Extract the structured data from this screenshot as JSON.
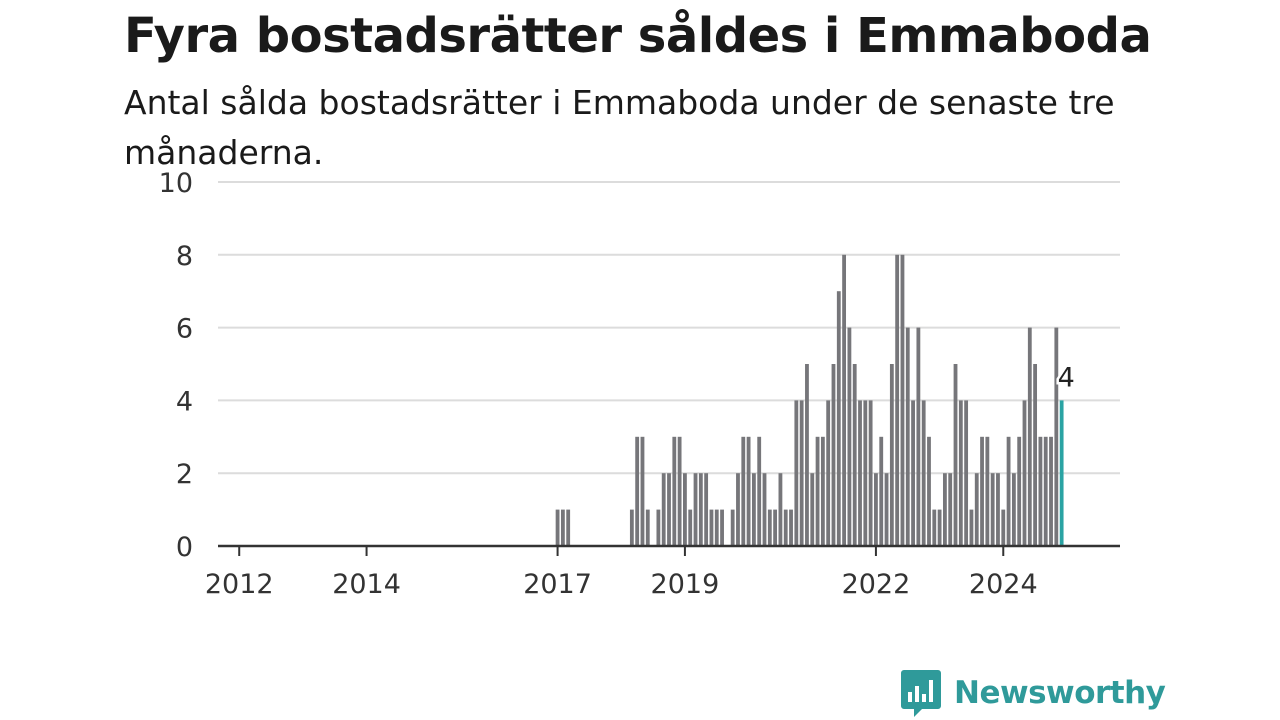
{
  "header": {
    "title": "Fyra bostadsrätter såldes i Emmaboda",
    "subtitle": "Antal sålda bostadsrätter i Emmaboda under de senaste tre månaderna."
  },
  "chart_data": {
    "type": "bar",
    "title": "Fyra bostadsrätter såldes i Emmaboda",
    "subtitle": "Antal sålda bostadsrätter i Emmaboda under de senaste tre månaderna.",
    "xlabel": "",
    "ylabel": "",
    "x_range": [
      "2011-09",
      "2025-11"
    ],
    "ylim": [
      0,
      10
    ],
    "yticks": [
      0,
      2,
      4,
      6,
      8,
      10
    ],
    "xticks": [
      {
        "label": "2012",
        "date": "2012-01"
      },
      {
        "label": "2014",
        "date": "2014-01"
      },
      {
        "label": "2017",
        "date": "2017-01"
      },
      {
        "label": "2019",
        "date": "2019-01"
      },
      {
        "label": "2022",
        "date": "2022-01"
      },
      {
        "label": "2024",
        "date": "2024-01"
      }
    ],
    "grid": true,
    "bar_color": "#76767a",
    "highlight_color": "#2aa3a3",
    "highlight_label": "4",
    "highlight_last": true,
    "start_month": "2017-01",
    "values": [
      1,
      1,
      1,
      0,
      0,
      0,
      0,
      0,
      0,
      0,
      0,
      0,
      0,
      0,
      1,
      3,
      3,
      1,
      0,
      1,
      2,
      2,
      3,
      3,
      2,
      1,
      2,
      2,
      2,
      1,
      1,
      1,
      0,
      1,
      2,
      3,
      3,
      2,
      3,
      2,
      1,
      1,
      2,
      1,
      1,
      4,
      4,
      5,
      2,
      3,
      3,
      4,
      5,
      7,
      8,
      6,
      5,
      4,
      4,
      4,
      2,
      3,
      2,
      5,
      8,
      8,
      6,
      4,
      6,
      4,
      3,
      1,
      1,
      2,
      2,
      5,
      4,
      4,
      1,
      2,
      3,
      3,
      2,
      2,
      1,
      3,
      2,
      3,
      4,
      6,
      5,
      3,
      3,
      3,
      6,
      4
    ]
  },
  "brand": {
    "name": "Newsworthy",
    "color": "#2f9a9a"
  }
}
